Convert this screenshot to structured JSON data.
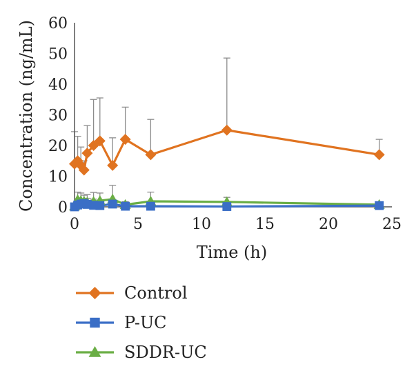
{
  "chart_data": {
    "type": "line",
    "title": "",
    "xlabel": "Time (h)",
    "ylabel": "Concentration (ng/mL)",
    "xlim": [
      0,
      25
    ],
    "ylim": [
      0,
      60
    ],
    "x_ticks": [
      0,
      5,
      10,
      15,
      20,
      25
    ],
    "y_ticks": [
      0,
      10,
      20,
      30,
      40,
      50,
      60
    ],
    "grid": false,
    "legend_position": "bottom-left",
    "series": [
      {
        "name": "Control",
        "color": "#E07320",
        "marker": "diamond",
        "x": [
          0,
          0.25,
          0.5,
          0.75,
          1,
          1.5,
          2,
          3,
          4,
          6,
          12,
          24
        ],
        "y": [
          14,
          15,
          13.5,
          12,
          17.5,
          20,
          21.5,
          13.5,
          22,
          17,
          25,
          17
        ],
        "error": [
          10.5,
          8,
          6,
          3,
          9,
          15,
          14,
          9,
          10.5,
          11.5,
          23.5,
          5
        ]
      },
      {
        "name": "P-UC",
        "color": "#3A6EC6",
        "marker": "square",
        "x": [
          0,
          0.25,
          0.5,
          0.75,
          1,
          1.5,
          2,
          3,
          4,
          6,
          12,
          24
        ],
        "y": [
          0,
          0.6,
          0.9,
          1.1,
          0.8,
          0.5,
          0.4,
          0.9,
          0.2,
          0.2,
          0.1,
          0.4
        ],
        "error": [
          0,
          1.5,
          1.5,
          1.5,
          2,
          2,
          1.5,
          1,
          0.5,
          0.5,
          0.4,
          0.5
        ]
      },
      {
        "name": "SDDR-UC",
        "color": "#6AAE45",
        "marker": "triangle",
        "x": [
          0,
          0.25,
          0.5,
          0.75,
          1,
          1.5,
          2,
          3,
          4,
          6,
          12,
          24
        ],
        "y": [
          0.2,
          2.3,
          2,
          1.8,
          1.5,
          1.7,
          2,
          2.5,
          0.7,
          1.8,
          1.6,
          0.7
        ],
        "error": [
          0,
          2.5,
          2.5,
          2,
          2.5,
          3,
          2.5,
          4.5,
          1,
          3,
          1.5,
          0.5
        ]
      }
    ]
  }
}
